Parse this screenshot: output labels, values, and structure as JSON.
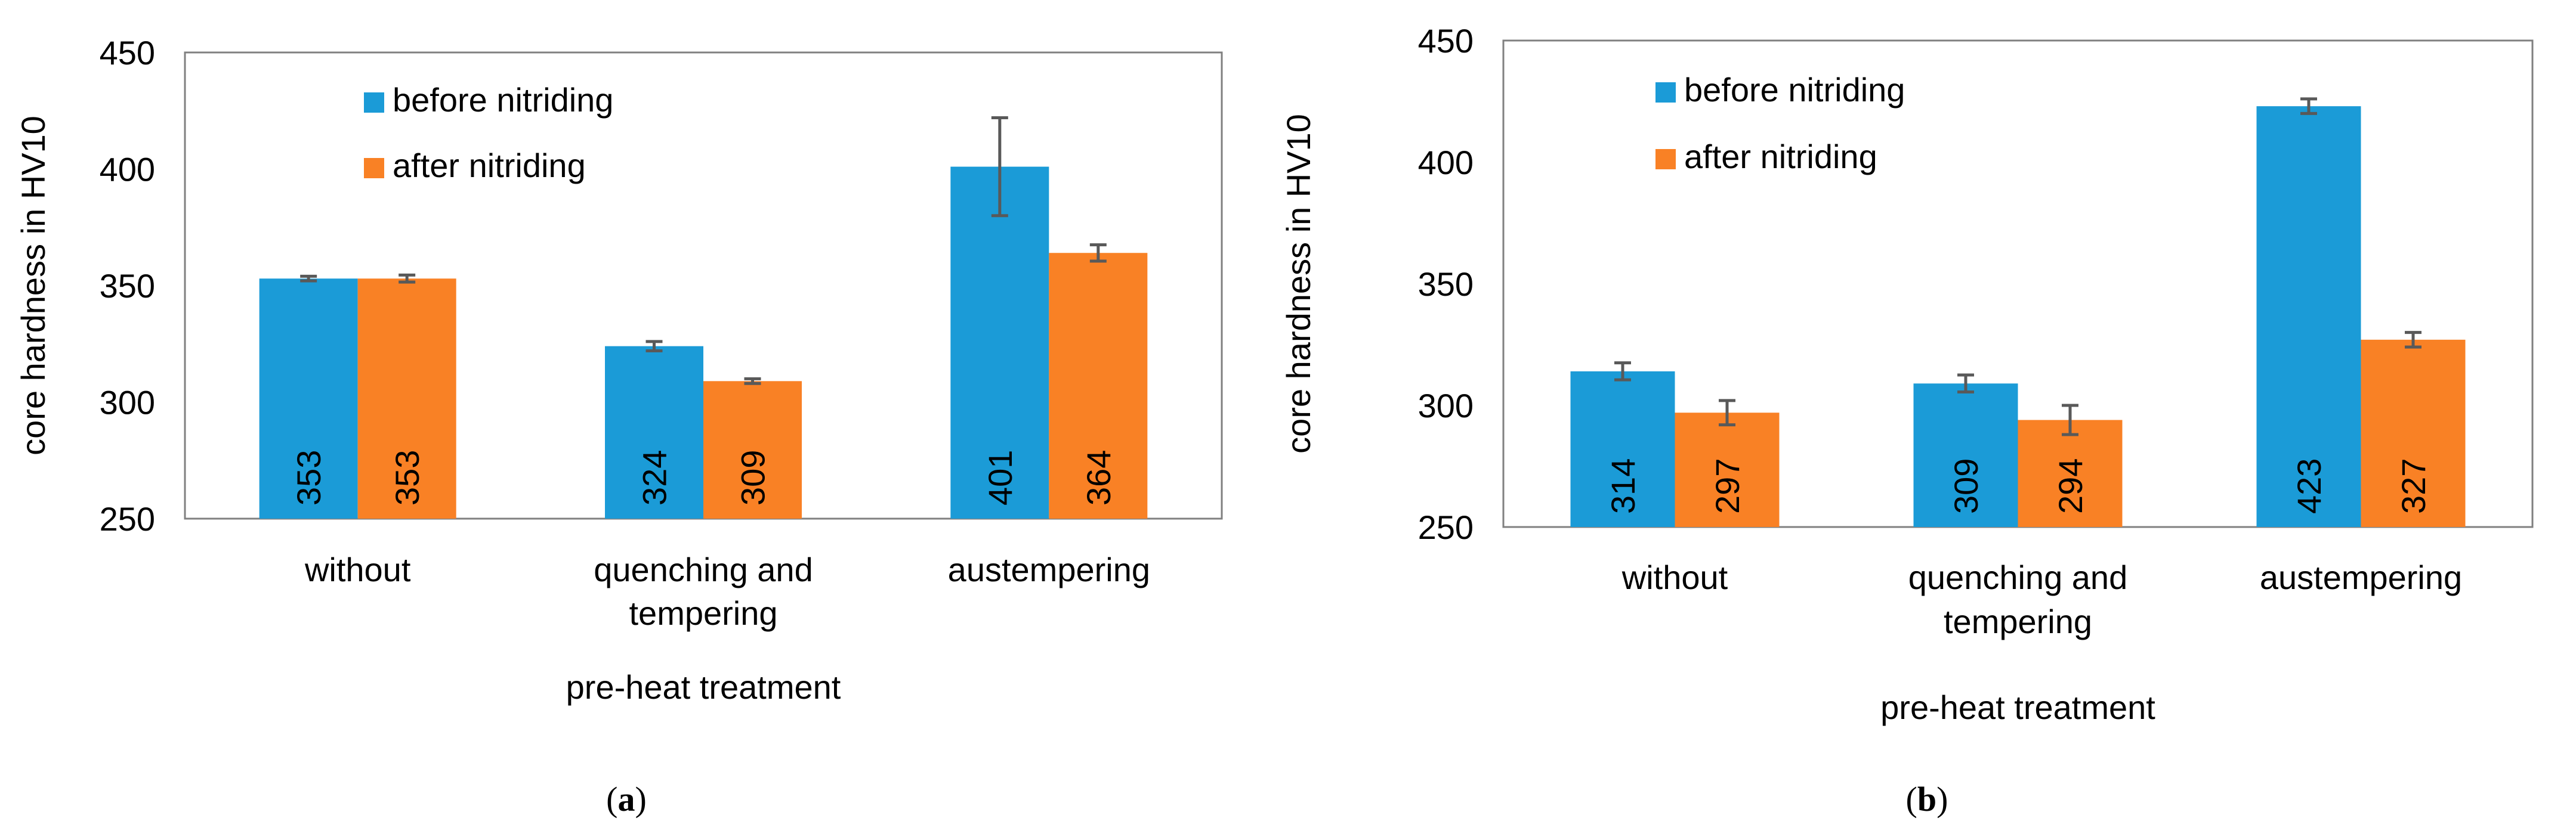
{
  "colors": {
    "before": "#1B9BD7",
    "after": "#F98125",
    "error": "#595959",
    "frame": "#808080"
  },
  "chart_data": [
    {
      "type": "bar",
      "panel_label": "a",
      "categories": [
        [
          "without"
        ],
        [
          "quenching and",
          "tempering"
        ],
        [
          "austempering"
        ]
      ],
      "series": [
        {
          "name": "before nitriding",
          "values": [
            353,
            324,
            401
          ],
          "errors": [
            1,
            2,
            21
          ]
        },
        {
          "name": "after nitriding",
          "values": [
            353,
            309,
            364
          ],
          "errors": [
            1.5,
            1,
            3.5
          ]
        }
      ],
      "data_labels": [
        [
          "353",
          "324",
          "401"
        ],
        [
          "353",
          "309",
          "364"
        ]
      ],
      "xlabel": "pre-heat treatment",
      "ylabel": "core hardness in HV10",
      "ylim": [
        250,
        450
      ],
      "yticks": [
        250,
        300,
        350,
        400,
        450
      ],
      "legend_position": "top-left"
    },
    {
      "type": "bar",
      "panel_label": "b",
      "categories": [
        [
          "without"
        ],
        [
          "quenching and",
          "tempering"
        ],
        [
          "austempering"
        ]
      ],
      "series": [
        {
          "name": "before nitriding",
          "values": [
            314,
            309,
            423
          ],
          "errors": [
            3.5,
            3.5,
            3
          ]
        },
        {
          "name": "after nitriding",
          "values": [
            297,
            294,
            327
          ],
          "errors": [
            5,
            6,
            3
          ]
        }
      ],
      "data_labels": [
        [
          "314",
          "309",
          "423"
        ],
        [
          "297",
          "294",
          "327"
        ]
      ],
      "xlabel": "pre-heat treatment",
      "ylabel": "core hardness in HV10",
      "ylim": [
        250,
        450
      ],
      "yticks": [
        250,
        300,
        350,
        400,
        450
      ],
      "legend_position": "top-left"
    }
  ]
}
